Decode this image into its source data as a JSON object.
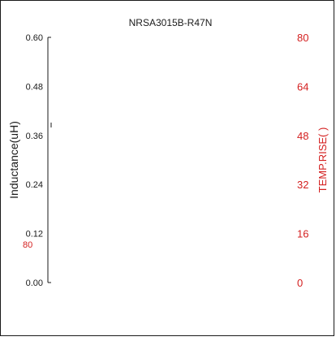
{
  "chart_data": {
    "type": "line",
    "title": "NRSA3015B-R47N",
    "ylabel": "Inductance(uH)",
    "y2label": "TEMP.RISE(   )",
    "ylim": [
      0,
      0.6
    ],
    "y2lim": [
      0,
      80
    ],
    "yticks": [
      "0.00",
      "0.12",
      "0.24",
      "0.36",
      "0.48",
      "0.60"
    ],
    "y2ticks": [
      "0",
      "16",
      "32",
      "48",
      "64",
      "80"
    ],
    "stray_label": "80",
    "series": [],
    "colors": {
      "primary": "#1a1a1a",
      "secondary": "#d42020"
    }
  }
}
